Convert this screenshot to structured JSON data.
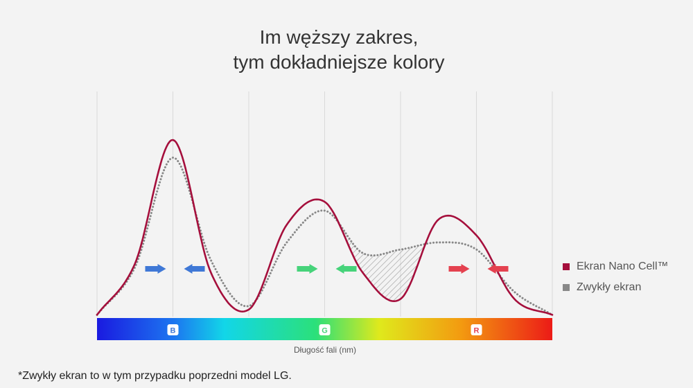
{
  "title": {
    "line1": "Im węższy zakres,",
    "line2": "tym dokładniejsze kolory"
  },
  "footnote": "*Zwykły ekran to w tym przypadku poprzedni model LG.",
  "chart_data": {
    "type": "line",
    "xlabel": "Długość fali (nm)",
    "ylabel": "",
    "x": [
      0,
      0.5,
      1,
      1.5,
      2,
      2.5,
      3,
      3.5,
      4,
      4.5,
      5,
      5.5,
      6
    ],
    "band_labels": [
      "B",
      "G",
      "R"
    ],
    "band_positions": [
      1,
      3,
      5
    ],
    "series": [
      {
        "name": "Ekran Nano Cell™",
        "color": "#a50f3c",
        "style": "solid",
        "values": [
          0.01,
          0.3,
          1.0,
          0.25,
          0.04,
          0.52,
          0.65,
          0.25,
          0.1,
          0.55,
          0.46,
          0.1,
          0.01
        ]
      },
      {
        "name": "Zwykły ekran",
        "color": "#888888",
        "style": "dotted",
        "values": [
          0.01,
          0.28,
          0.9,
          0.32,
          0.06,
          0.42,
          0.6,
          0.36,
          0.38,
          0.42,
          0.38,
          0.14,
          0.01
        ]
      }
    ],
    "ylim": [
      0,
      1.1
    ],
    "grid": true,
    "arrows": [
      {
        "band": "B",
        "color": "#3f78d6"
      },
      {
        "band": "G",
        "color": "#46d37a"
      },
      {
        "band": "R",
        "color": "#e4414f"
      }
    ],
    "legend_position": "right"
  }
}
